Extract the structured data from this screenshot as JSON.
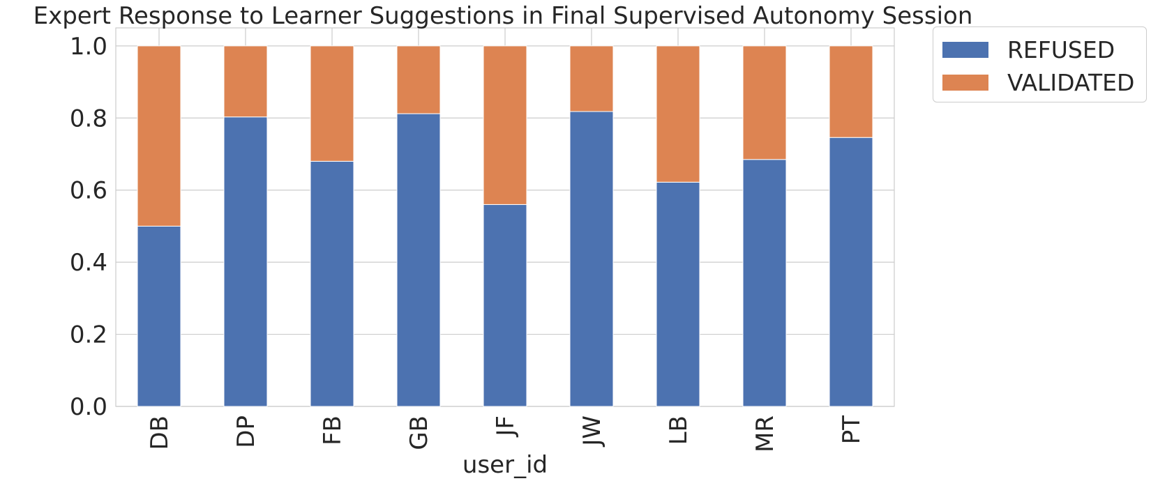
{
  "chart_data": {
    "type": "bar",
    "stacked": true,
    "title": "Expert Response to Learner Suggestions in Final Supervised Autonomy Session",
    "xlabel": "user_id",
    "ylabel": "",
    "categories": [
      "DB",
      "DP",
      "FB",
      "GB",
      "JF",
      "JW",
      "LB",
      "MR",
      "PT"
    ],
    "series": [
      {
        "name": "REFUSED",
        "color": "#4c72b0",
        "values": [
          0.5,
          0.803,
          0.68,
          0.812,
          0.56,
          0.818,
          0.622,
          0.685,
          0.746
        ]
      },
      {
        "name": "VALIDATED",
        "color": "#dd8452",
        "values": [
          0.5,
          0.197,
          0.32,
          0.188,
          0.44,
          0.182,
          0.378,
          0.315,
          0.254
        ]
      }
    ],
    "ylim": [
      0,
      1.05
    ],
    "yticks": [
      "0.0",
      "0.2",
      "0.4",
      "0.6",
      "0.8",
      "1.0"
    ],
    "grid": true,
    "legend_position": "outside-top-right"
  }
}
